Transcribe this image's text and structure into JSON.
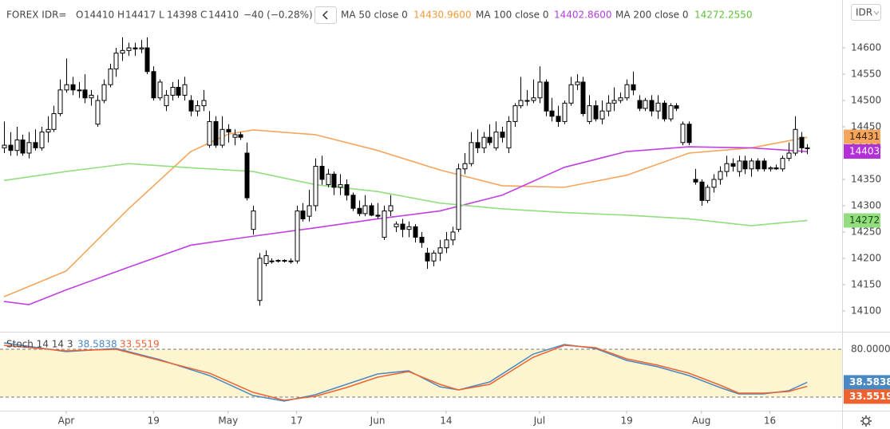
{
  "chart_data": [
    {
      "type": "candlestick",
      "title": "FOREX IDR=",
      "currency": "IDR",
      "ohlc_header": [
        {
          "key": "O",
          "value": 14410
        },
        {
          "key": "H",
          "value": 14417
        },
        {
          "key": "L",
          "value": 14398
        },
        {
          "key": "C",
          "value": 14410
        }
      ],
      "change": "−40 (−0.28%)",
      "last_price": 14410,
      "ylim": [
        14062,
        14691
      ],
      "yticks": [
        14100,
        14150,
        14200,
        14250,
        14300,
        14350,
        14450,
        14500,
        14550,
        14600
      ],
      "xlim": [
        -0.64,
        134.6
      ],
      "xticks": [
        {
          "value": 10,
          "label": "Apr"
        },
        {
          "value": 24,
          "label": "19"
        },
        {
          "value": 36,
          "label": "May"
        },
        {
          "value": 47,
          "label": "17"
        },
        {
          "value": 60,
          "label": "Jun"
        },
        {
          "value": 71,
          "label": "14"
        },
        {
          "value": 86,
          "label": "Jul"
        },
        {
          "value": 100,
          "label": "19"
        },
        {
          "value": 112,
          "label": "Aug"
        },
        {
          "value": 123,
          "label": "16"
        }
      ],
      "grid": false,
      "up_color": "#ffffff",
      "down_color": "#000000",
      "ohlc": [
        [
          14410,
          14460,
          14400,
          14415
        ],
        [
          14415,
          14440,
          14395,
          14405
        ],
        [
          14405,
          14450,
          14395,
          14425
        ],
        [
          14425,
          14435,
          14395,
          14400
        ],
        [
          14400,
          14440,
          14390,
          14420
        ],
        [
          14420,
          14445,
          14405,
          14410
        ],
        [
          14410,
          14450,
          14405,
          14440
        ],
        [
          14440,
          14470,
          14420,
          14445
        ],
        [
          14445,
          14490,
          14440,
          14475
        ],
        [
          14475,
          14540,
          14470,
          14520
        ],
        [
          14520,
          14580,
          14515,
          14530
        ],
        [
          14530,
          14545,
          14510,
          14520
        ],
        [
          14520,
          14535,
          14505,
          14520
        ],
        [
          14520,
          14550,
          14495,
          14505
        ],
        [
          14505,
          14520,
          14490,
          14510
        ],
        [
          14455,
          14510,
          14450,
          14500
        ],
        [
          14500,
          14540,
          14495,
          14530
        ],
        [
          14530,
          14570,
          14525,
          14560
        ],
        [
          14560,
          14600,
          14545,
          14590
        ],
        [
          14590,
          14620,
          14575,
          14595
        ],
        [
          14595,
          14610,
          14585,
          14600
        ],
        [
          14600,
          14610,
          14585,
          14598
        ],
        [
          14598,
          14615,
          14590,
          14600
        ],
        [
          14600,
          14620,
          14550,
          14555
        ],
        [
          14555,
          14565,
          14500,
          14505
        ],
        [
          14505,
          14540,
          14500,
          14535
        ],
        [
          14490,
          14520,
          14480,
          14510
        ],
        [
          14510,
          14535,
          14500,
          14525
        ],
        [
          14525,
          14540,
          14505,
          14510
        ],
        [
          14510,
          14545,
          14500,
          14530
        ],
        [
          14500,
          14510,
          14470,
          14480
        ],
        [
          14480,
          14500,
          14470,
          14490
        ],
        [
          14490,
          14520,
          14480,
          14500
        ],
        [
          14415,
          14480,
          14410,
          14460
        ],
        [
          14460,
          14470,
          14410,
          14415
        ],
        [
          14415,
          14470,
          14410,
          14445
        ],
        [
          14445,
          14455,
          14420,
          14440
        ],
        [
          14430,
          14445,
          14415,
          14435
        ],
        [
          14435,
          14440,
          14425,
          14430
        ],
        [
          14400,
          14420,
          14310,
          14315
        ],
        [
          14255,
          14300,
          14245,
          14290
        ],
        [
          14120,
          14210,
          14110,
          14200
        ],
        [
          14190,
          14215,
          14185,
          14205
        ],
        [
          14195,
          14200,
          14190,
          14195
        ],
        [
          14195,
          14198,
          14192,
          14196
        ],
        [
          14196,
          14198,
          14192,
          14195
        ],
        [
          14195,
          14200,
          14190,
          14195
        ],
        [
          14195,
          14300,
          14190,
          14290
        ],
        [
          14290,
          14305,
          14270,
          14275
        ],
        [
          14280,
          14330,
          14270,
          14300
        ],
        [
          14300,
          14390,
          14290,
          14375
        ],
        [
          14375,
          14395,
          14340,
          14350
        ],
        [
          14340,
          14370,
          14335,
          14360
        ],
        [
          14360,
          14365,
          14320,
          14335
        ],
        [
          14335,
          14360,
          14320,
          14340
        ],
        [
          14340,
          14350,
          14310,
          14320
        ],
        [
          14320,
          14325,
          14290,
          14295
        ],
        [
          14295,
          14310,
          14280,
          14285
        ],
        [
          14285,
          14320,
          14280,
          14300
        ],
        [
          14300,
          14305,
          14280,
          14282
        ],
        [
          14282,
          14305,
          14275,
          14280
        ],
        [
          14240,
          14300,
          14235,
          14290
        ],
        [
          14290,
          14320,
          14280,
          14300
        ],
        [
          14260,
          14270,
          14250,
          14265
        ],
        [
          14265,
          14275,
          14240,
          14255
        ],
        [
          14255,
          14270,
          14240,
          14260
        ],
        [
          14260,
          14265,
          14230,
          14240
        ],
        [
          14240,
          14250,
          14220,
          14230
        ],
        [
          14210,
          14220,
          14180,
          14195
        ],
        [
          14195,
          14215,
          14185,
          14210
        ],
        [
          14210,
          14235,
          14195,
          14220
        ],
        [
          14220,
          14250,
          14210,
          14235
        ],
        [
          14235,
          14260,
          14225,
          14250
        ],
        [
          14255,
          14380,
          14250,
          14370
        ],
        [
          14370,
          14400,
          14360,
          14380
        ],
        [
          14380,
          14440,
          14375,
          14420
        ],
        [
          14420,
          14445,
          14400,
          14410
        ],
        [
          14410,
          14440,
          14400,
          14430
        ],
        [
          14430,
          14455,
          14415,
          14420
        ],
        [
          14410,
          14460,
          14405,
          14440
        ],
        [
          14440,
          14450,
          14420,
          14430
        ],
        [
          14410,
          14470,
          14400,
          14460
        ],
        [
          14460,
          14495,
          14450,
          14490
        ],
        [
          14490,
          14545,
          14485,
          14500
        ],
        [
          14500,
          14520,
          14490,
          14500
        ],
        [
          14500,
          14540,
          14495,
          14505
        ],
        [
          14505,
          14565,
          14495,
          14535
        ],
        [
          14535,
          14540,
          14470,
          14480
        ],
        [
          14480,
          14505,
          14460,
          14470
        ],
        [
          14470,
          14490,
          14450,
          14460
        ],
        [
          14460,
          14500,
          14455,
          14495
        ],
        [
          14495,
          14545,
          14490,
          14530
        ],
        [
          14530,
          14550,
          14520,
          14535
        ],
        [
          14535,
          14545,
          14470,
          14475
        ],
        [
          14460,
          14510,
          14455,
          14490
        ],
        [
          14490,
          14500,
          14460,
          14465
        ],
        [
          14465,
          14500,
          14455,
          14480
        ],
        [
          14480,
          14510,
          14470,
          14495
        ],
        [
          14495,
          14525,
          14480,
          14500
        ],
        [
          14500,
          14515,
          14495,
          14505
        ],
        [
          14505,
          14540,
          14500,
          14530
        ],
        [
          14530,
          14555,
          14510,
          14520
        ],
        [
          14500,
          14510,
          14480,
          14485
        ],
        [
          14485,
          14505,
          14480,
          14500
        ],
        [
          14500,
          14510,
          14470,
          14480
        ],
        [
          14480,
          14510,
          14465,
          14495
        ],
        [
          14495,
          14500,
          14460,
          14465
        ],
        [
          14465,
          14495,
          14460,
          14490
        ],
        [
          14490,
          14495,
          14480,
          14485
        ],
        [
          14420,
          14460,
          14415,
          14455
        ],
        [
          14455,
          14460,
          14415,
          14420
        ],
        [
          14350,
          14370,
          14340,
          14345
        ],
        [
          14345,
          14350,
          14300,
          14310
        ],
        [
          14310,
          14340,
          14305,
          14335
        ],
        [
          14335,
          14360,
          14325,
          14350
        ],
        [
          14350,
          14375,
          14340,
          14365
        ],
        [
          14365,
          14395,
          14355,
          14380
        ],
        [
          14380,
          14390,
          14365,
          14375
        ],
        [
          14365,
          14395,
          14355,
          14385
        ],
        [
          14385,
          14395,
          14360,
          14370
        ],
        [
          14370,
          14390,
          14355,
          14385
        ],
        [
          14385,
          14390,
          14365,
          14370
        ],
        [
          14385,
          14390,
          14365,
          14370
        ],
        [
          14370,
          14375,
          14365,
          14372
        ],
        [
          14372,
          14378,
          14368,
          14370
        ],
        [
          14370,
          14395,
          14365,
          14390
        ],
        [
          14390,
          14420,
          14385,
          14400
        ],
        [
          14400,
          14470,
          14395,
          14445
        ],
        [
          14430,
          14440,
          14400,
          14410
        ],
        [
          14410,
          14417,
          14398,
          14410
        ]
      ],
      "series": [
        {
          "name": "MA 50 close 0",
          "color": "#f6a55c",
          "text_color": "#f39a3a",
          "last_value": {
            "value": 14430.96,
            "label": "14430.9600"
          },
          "badge": 14431,
          "x": [
            0,
            10,
            20,
            30,
            36,
            40,
            50,
            60,
            70,
            80,
            90,
            100,
            110,
            120,
            129
          ],
          "values": [
            14127,
            14176,
            14294,
            14403,
            14436,
            14444,
            14435,
            14405,
            14368,
            14338,
            14335,
            14358,
            14400,
            14410,
            14430
          ]
        },
        {
          "name": "MA 100 close 0",
          "color": "#c040e0",
          "text_color": "#b53ddc",
          "last_value": {
            "value": 14402.86,
            "label": "14402.8600"
          },
          "badge": 14403,
          "x": [
            0,
            4,
            10,
            20,
            30,
            40,
            50,
            60,
            70,
            80,
            90,
            100,
            110,
            120,
            129
          ],
          "values": [
            14118,
            14112,
            14140,
            14183,
            14225,
            14242,
            14258,
            14275,
            14290,
            14320,
            14373,
            14403,
            14412,
            14410,
            14403
          ]
        },
        {
          "name": "MA 200 close 0",
          "color": "#92de7e",
          "text_color": "#5fc23a",
          "last_value": {
            "value": 14272.255,
            "label": "14272.2550"
          },
          "badge": 14272,
          "x": [
            0,
            10,
            20,
            30,
            40,
            50,
            60,
            70,
            80,
            90,
            100,
            110,
            120,
            129
          ],
          "values": [
            14348,
            14365,
            14380,
            14372,
            14365,
            14340,
            14327,
            14305,
            14294,
            14287,
            14282,
            14275,
            14262,
            14272
          ]
        }
      ]
    },
    {
      "type": "line",
      "title": "Stoch 14 14 3",
      "ylim": [
        3,
        101
      ],
      "yticks": [
        {
          "value": 80,
          "label": "80.0000"
        }
      ],
      "bands": [
        80,
        20
      ],
      "band_color": "#fdf5cf",
      "x": [
        0,
        10,
        18,
        25,
        33,
        40,
        45,
        50,
        55,
        60,
        65,
        70,
        73,
        78,
        85,
        90,
        95,
        100,
        105,
        110,
        115,
        118,
        122,
        126,
        129
      ],
      "series": [
        {
          "color": "#4a88c2",
          "last_value": 38.5838,
          "values": [
            88,
            77,
            81,
            67,
            47,
            22,
            15,
            23,
            36,
            49,
            53,
            33,
            29,
            39,
            74,
            86,
            81,
            66,
            58,
            47,
            32,
            24,
            24,
            28,
            38.5838
          ]
        },
        {
          "color": "#ef6230",
          "last_value": 33.5519,
          "values": [
            85,
            78,
            80,
            66,
            50,
            26,
            16,
            21,
            32,
            45,
            52,
            36,
            29,
            36,
            70,
            85,
            82,
            68,
            60,
            50,
            35,
            25,
            25,
            27,
            33.5519
          ]
        }
      ]
    }
  ]
}
